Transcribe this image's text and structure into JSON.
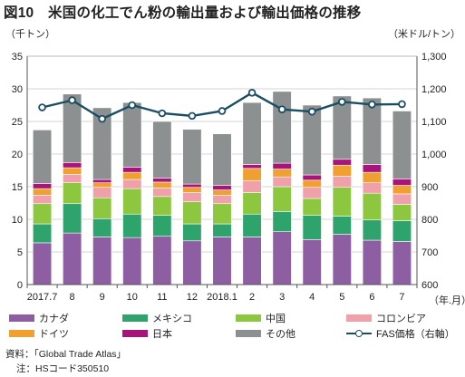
{
  "title": "図10　米国の化工でん粉の輸出量および輸出価格の推移",
  "left_unit": "（千トン）",
  "right_unit": "（米ドル/トン）",
  "x_unit": "（年.月）",
  "source": "資料：「Global Trade Atlas」",
  "note": "注：HSコード350510",
  "chart_data": {
    "type": "bar",
    "stacked": true,
    "categories": [
      "2017.7",
      "8",
      "9",
      "10",
      "11",
      "12",
      "2018.1",
      "2",
      "3",
      "4",
      "5",
      "6",
      "7"
    ],
    "ylim": [
      0,
      35
    ],
    "yticks": [
      0,
      5,
      10,
      15,
      20,
      25,
      30,
      35
    ],
    "y2lim": [
      600,
      1300
    ],
    "y2ticks": [
      600,
      700,
      800,
      900,
      1000,
      1100,
      1200,
      1300
    ],
    "y2tick_labels": [
      "600",
      "700",
      "800",
      "900",
      "1,000",
      "1,100",
      "1,200",
      "1,300"
    ],
    "grid": true,
    "series": [
      {
        "name": "カナダ",
        "color": "#8e5ea2",
        "values": [
          6.4,
          7.9,
          7.3,
          7.2,
          7.4,
          6.7,
          7.3,
          7.3,
          8.1,
          6.9,
          7.7,
          6.8,
          6.6
        ]
      },
      {
        "name": "メキシコ",
        "color": "#2ea36b",
        "values": [
          2.9,
          4.5,
          2.8,
          3.6,
          3.2,
          2.6,
          2.0,
          3.5,
          3.1,
          3.7,
          2.8,
          3.1,
          3.2
        ]
      },
      {
        "name": "中国",
        "color": "#8dc63f",
        "values": [
          3.1,
          3.2,
          3.2,
          3.9,
          2.9,
          3.4,
          3.1,
          3.3,
          3.8,
          2.6,
          4.4,
          4.1,
          2.5
        ]
      },
      {
        "name": "コロンビア",
        "color": "#f0a0a8",
        "values": [
          1.3,
          1.3,
          1.6,
          1.4,
          1.3,
          1.4,
          1.3,
          1.8,
          1.5,
          1.7,
          1.7,
          1.6,
          1.6
        ]
      },
      {
        "name": "ドイツ",
        "color": "#f0a030",
        "values": [
          1.0,
          1.0,
          0.7,
          1.1,
          0.9,
          0.8,
          0.8,
          1.9,
          1.2,
          1.1,
          1.7,
          1.6,
          1.3
        ]
      },
      {
        "name": "日本",
        "color": "#a8157a",
        "values": [
          0.8,
          0.8,
          0.5,
          0.8,
          0.6,
          0.5,
          0.7,
          0.6,
          0.9,
          0.8,
          0.9,
          1.2,
          1.0
        ]
      },
      {
        "name": "その他",
        "color": "#8c9091",
        "values": [
          8.2,
          10.5,
          11.0,
          9.9,
          8.7,
          8.4,
          7.9,
          9.5,
          11.0,
          10.7,
          9.7,
          10.2,
          10.4
        ]
      }
    ],
    "line": {
      "name": "FAS価格（右軸）",
      "color": "#1a4e63",
      "axis": "right",
      "values": [
        1143,
        1165,
        1108,
        1150,
        1125,
        1117,
        1132,
        1188,
        1137,
        1130,
        1160,
        1152,
        1153
      ]
    }
  }
}
